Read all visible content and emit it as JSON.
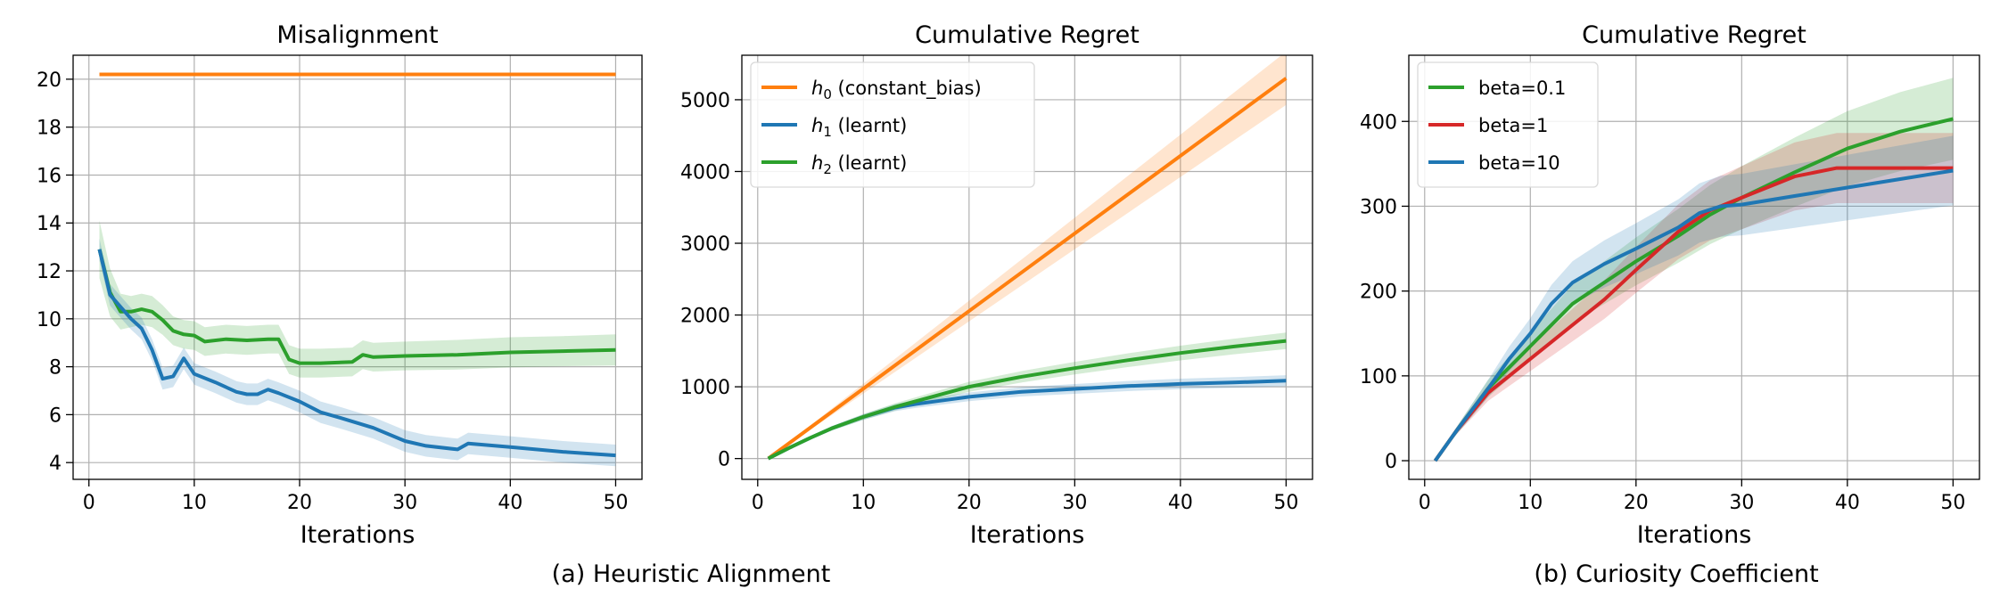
{
  "colors": {
    "orange": "#ff7f0e",
    "blue": "#1f77b4",
    "green": "#2ca02c",
    "red": "#d62728"
  },
  "captions": {
    "a": "(a) Heuristic Alignment",
    "b": "(b) Curiosity Coefficient"
  },
  "chart_data": [
    {
      "type": "line",
      "title": "Misalignment",
      "xlabel": "Iterations",
      "ylabel": "",
      "xlim": [
        -1.5,
        52.5
      ],
      "ylim": [
        3.3,
        21.0
      ],
      "xticks": [
        0,
        10,
        20,
        30,
        40,
        50
      ],
      "yticks": [
        4,
        6,
        8,
        10,
        12,
        14,
        16,
        18,
        20
      ],
      "grid": true,
      "legend": null,
      "series": [
        {
          "color": "orange",
          "x": [
            1,
            50
          ],
          "y": [
            20.2,
            20.2
          ],
          "band": 0
        },
        {
          "color": "green",
          "x": [
            1,
            2,
            3,
            4,
            5,
            6,
            7,
            8,
            9,
            10,
            11,
            13,
            15,
            17,
            18,
            19,
            20,
            22,
            25,
            26,
            27,
            30,
            35,
            40,
            45,
            50
          ],
          "y": [
            12.9,
            11.1,
            10.3,
            10.3,
            10.4,
            10.3,
            9.95,
            9.5,
            9.35,
            9.3,
            9.05,
            9.15,
            9.1,
            9.15,
            9.15,
            8.3,
            8.15,
            8.15,
            8.2,
            8.5,
            8.4,
            8.45,
            8.5,
            8.6,
            8.65,
            8.7
          ],
          "band": [
            1.2,
            1.0,
            0.75,
            0.65,
            0.65,
            0.65,
            0.62,
            0.6,
            0.6,
            0.6,
            0.6,
            0.6,
            0.6,
            0.6,
            0.6,
            0.6,
            0.6,
            0.6,
            0.6,
            0.6,
            0.6,
            0.6,
            0.62,
            0.63,
            0.63,
            0.65
          ]
        },
        {
          "color": "blue",
          "x": [
            1,
            2,
            3,
            4,
            5,
            6,
            7,
            8,
            9,
            10,
            12,
            14,
            15,
            16,
            17,
            18,
            20,
            22,
            24,
            27,
            30,
            32,
            35,
            36,
            40,
            45,
            50
          ],
          "y": [
            12.9,
            11.0,
            10.5,
            10.0,
            9.6,
            8.7,
            7.5,
            7.6,
            8.35,
            7.7,
            7.35,
            6.95,
            6.85,
            6.85,
            7.05,
            6.9,
            6.55,
            6.1,
            5.85,
            5.45,
            4.9,
            4.7,
            4.55,
            4.8,
            4.65,
            4.45,
            4.3
          ]
        },
        {
          "_": null
        }
      ]
    },
    {
      "type": "line",
      "title": "Cumulative Regret",
      "xlabel": "Iterations",
      "ylabel": "",
      "xlim": [
        -1.5,
        52.5
      ],
      "ylim": [
        -290,
        5620
      ],
      "xticks": [
        0,
        10,
        20,
        30,
        40,
        50
      ],
      "yticks": [
        0,
        1000,
        2000,
        3000,
        4000,
        5000
      ],
      "grid": true,
      "legend": "top-left",
      "series": [
        {
          "name": "h_0 (constant_bias)",
          "sym": "h",
          "sub": "0",
          "rest": " (constant_bias)",
          "color": "orange",
          "x": [
            1,
            50
          ],
          "y": [
            0,
            5300
          ]
        },
        {
          "name": "h_1 (learnt)",
          "sym": "h",
          "sub": "1",
          "rest": " (learnt)",
          "color": "blue",
          "x": [
            1,
            3,
            5,
            7,
            10,
            13,
            15,
            17,
            20,
            25,
            30,
            35,
            40,
            45,
            50
          ],
          "y": [
            0,
            150,
            290,
            420,
            580,
            710,
            760,
            800,
            860,
            930,
            970,
            1010,
            1040,
            1060,
            1085
          ]
        },
        {
          "name": "h_2 (learnt)",
          "sym": "h",
          "sub": "2",
          "rest": " (learnt)",
          "color": "green",
          "x": [
            1,
            3,
            5,
            7,
            10,
            13,
            15,
            20,
            25,
            30,
            35,
            40,
            45,
            50
          ],
          "y": [
            0,
            150,
            290,
            420,
            580,
            720,
            800,
            1000,
            1140,
            1260,
            1370,
            1470,
            1560,
            1640
          ]
        }
      ]
    },
    {
      "type": "line",
      "title": "Cumulative Regret",
      "xlabel": "Iterations",
      "ylabel": "",
      "xlim": [
        -1.5,
        52.5
      ],
      "ylim": [
        -22,
        478
      ],
      "xticks": [
        0,
        10,
        20,
        30,
        40,
        50
      ],
      "yticks": [
        0,
        100,
        200,
        300,
        400
      ],
      "grid": true,
      "legend": "top-left",
      "series": [
        {
          "name": "beta=0.1",
          "color": "green",
          "x": [
            1,
            3,
            6,
            8,
            10,
            12,
            14,
            17,
            20,
            24,
            27,
            30,
            35,
            40,
            45,
            50
          ],
          "y": [
            0,
            35,
            85,
            110,
            135,
            160,
            185,
            210,
            235,
            265,
            290,
            310,
            340,
            368,
            388,
            403
          ]
        },
        {
          "name": "beta=1",
          "color": "red",
          "x": [
            1,
            3,
            6,
            8,
            10,
            12,
            14,
            17,
            20,
            24,
            27,
            30,
            35,
            39,
            45,
            50
          ],
          "y": [
            0,
            35,
            80,
            100,
            120,
            140,
            160,
            190,
            225,
            270,
            295,
            310,
            335,
            345,
            345,
            345
          ]
        },
        {
          "name": "beta=10",
          "color": "blue",
          "x": [
            1,
            3,
            6,
            8,
            10,
            12,
            14,
            17,
            20,
            24,
            26,
            28,
            30,
            35,
            40,
            45,
            50
          ],
          "y": [
            0,
            35,
            85,
            120,
            150,
            185,
            210,
            232,
            250,
            275,
            292,
            300,
            302,
            312,
            322,
            332,
            342
          ]
        }
      ]
    }
  ]
}
